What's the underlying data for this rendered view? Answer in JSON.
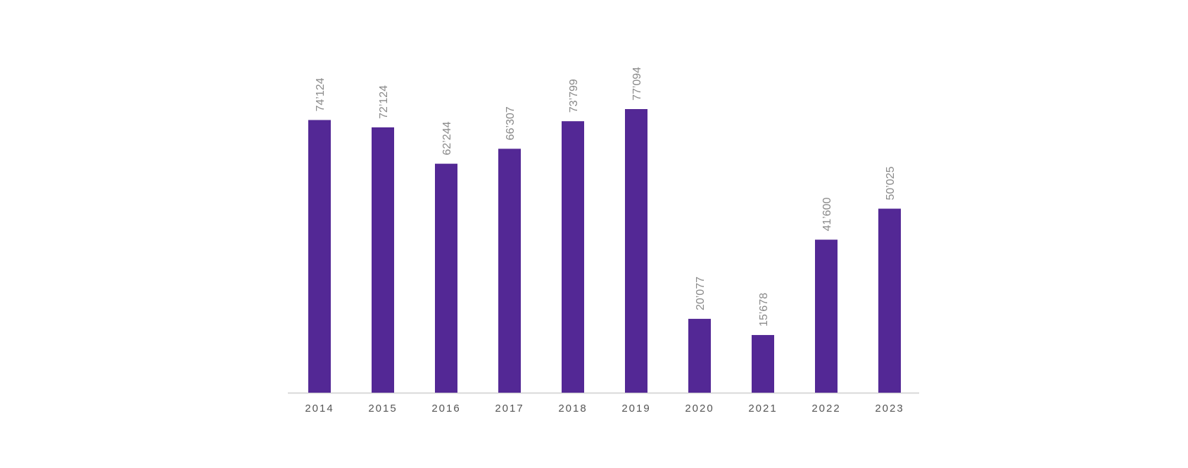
{
  "chart_data": {
    "type": "bar",
    "title": "",
    "xlabel": "",
    "ylabel": "",
    "categories": [
      "2014",
      "2015",
      "2016",
      "2017",
      "2018",
      "2019",
      "2020",
      "2021",
      "2022",
      "2023"
    ],
    "values": [
      74124,
      72124,
      62244,
      66307,
      73799,
      77094,
      20077,
      15678,
      41600,
      50025
    ],
    "data_labels": [
      "74’124",
      "72’124",
      "62’244",
      "66’307",
      "73’799",
      "77’094",
      "20’077",
      "15’678",
      "41’600",
      "50’025"
    ],
    "ylim": [
      0,
      77094
    ],
    "grid": false,
    "legend": "none",
    "colors": {
      "bar": "#532895",
      "axis": "#d9d9d9",
      "label": "#8a8a8a",
      "tick": "#555555"
    }
  }
}
